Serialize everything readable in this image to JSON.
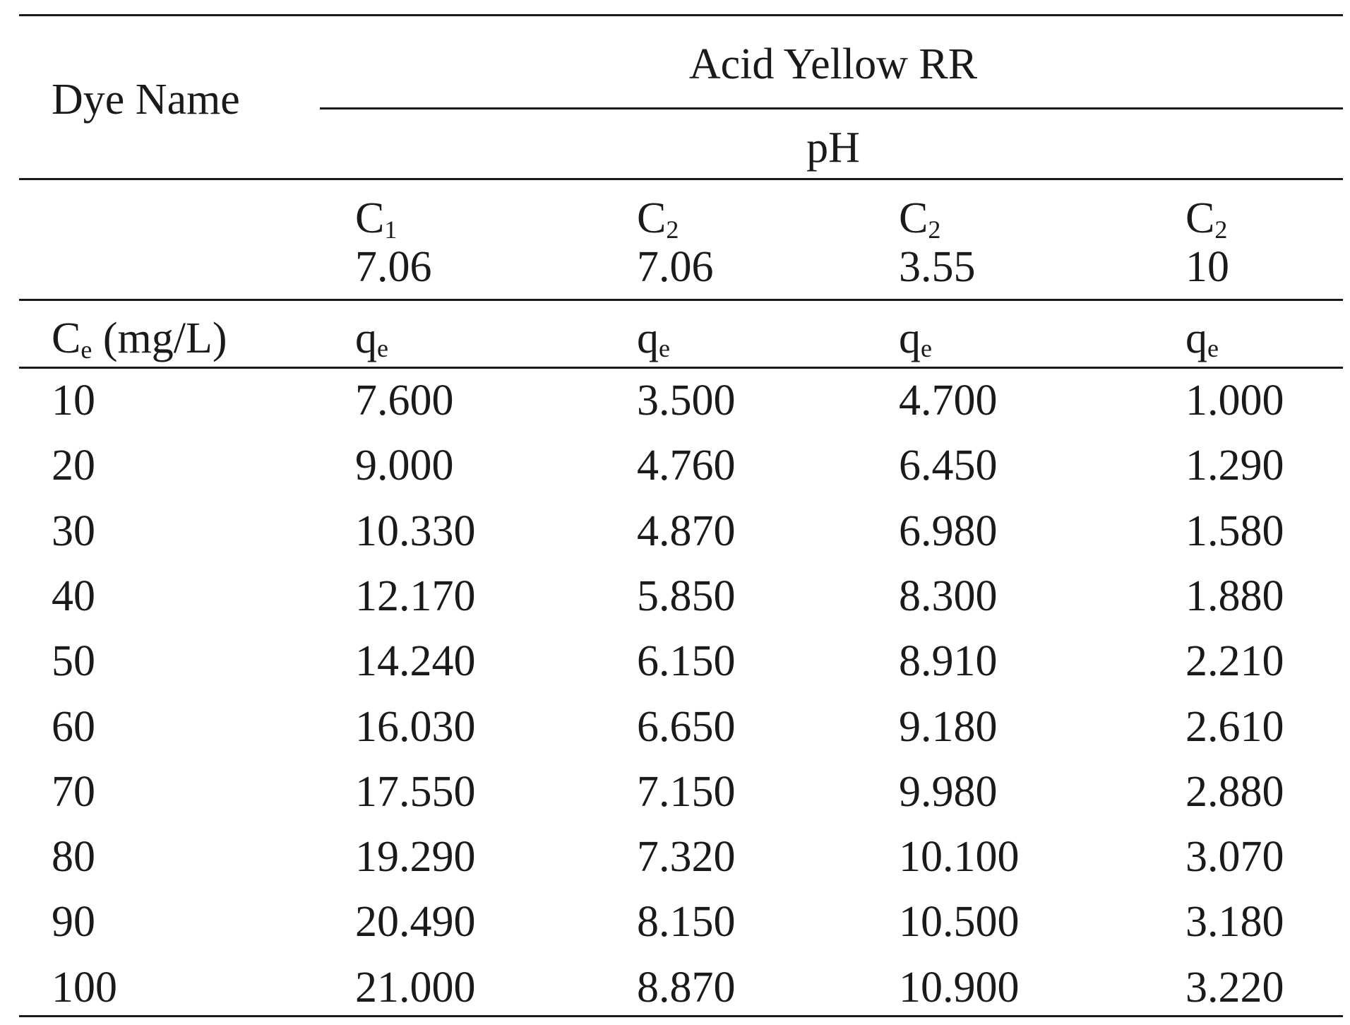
{
  "table": {
    "header": {
      "dye_name_label": "Dye Name",
      "dye_value": "Acid Yellow RR",
      "ph_label": "pH"
    },
    "conditions": [
      {
        "symbol": "C",
        "subscript": "1",
        "ph": "7.06"
      },
      {
        "symbol": "C",
        "subscript": "2",
        "ph": "7.06"
      },
      {
        "symbol": "C",
        "subscript": "2",
        "ph": "3.55"
      },
      {
        "symbol": "C",
        "subscript": "2",
        "ph": "10"
      }
    ],
    "column_header": {
      "ce_symbol": "C",
      "ce_subscript": "e",
      "ce_unit": " (mg/L)",
      "qe_symbol": "q",
      "qe_subscript": "e"
    },
    "rows": [
      {
        "ce": "10",
        "values": [
          "7.600",
          "3.500",
          "4.700",
          "1.000"
        ]
      },
      {
        "ce": "20",
        "values": [
          "9.000",
          "4.760",
          "6.450",
          "1.290"
        ]
      },
      {
        "ce": "30",
        "values": [
          "10.330",
          "4.870",
          "6.980",
          "1.580"
        ]
      },
      {
        "ce": "40",
        "values": [
          "12.170",
          "5.850",
          "8.300",
          "1.880"
        ]
      },
      {
        "ce": "50",
        "values": [
          "14.240",
          "6.150",
          "8.910",
          "2.210"
        ]
      },
      {
        "ce": "60",
        "values": [
          "16.030",
          "6.650",
          "9.180",
          "2.610"
        ]
      },
      {
        "ce": "70",
        "values": [
          "17.550",
          "7.150",
          "9.980",
          "2.880"
        ]
      },
      {
        "ce": "80",
        "values": [
          "19.290",
          "7.320",
          "10.100",
          "3.070"
        ]
      },
      {
        "ce": "90",
        "values": [
          "20.490",
          "8.150",
          "10.500",
          "3.180"
        ]
      },
      {
        "ce": "100",
        "values": [
          "21.000",
          "8.870",
          "10.900",
          "3.220"
        ]
      }
    ]
  }
}
